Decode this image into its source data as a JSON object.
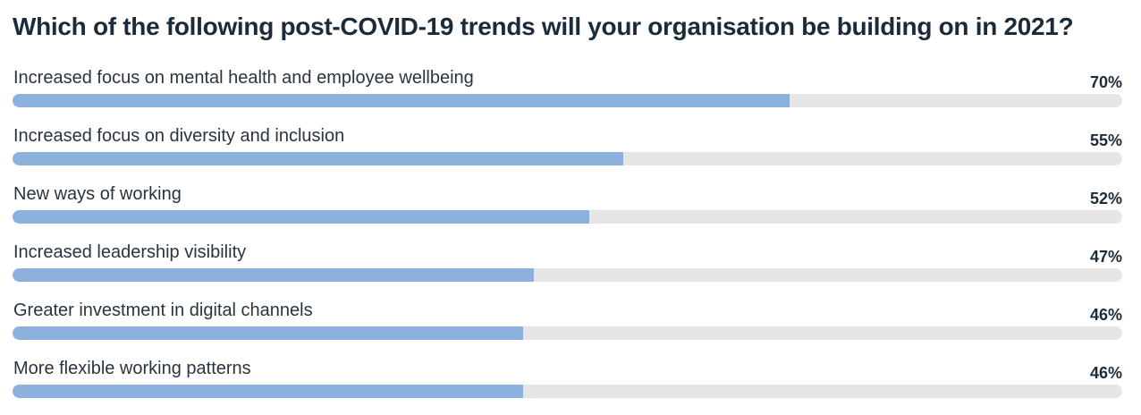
{
  "chart_data": {
    "type": "bar",
    "orientation": "horizontal",
    "title": "Which of the following post-COVID-19 trends will your organisation be building on in 2021?",
    "categories": [
      "Increased focus on mental health and employee wellbeing",
      "Increased focus on diversity and inclusion",
      "New ways of working",
      "Increased leadership visibility",
      "Greater investment in digital channels",
      "More flexible working patterns"
    ],
    "values": [
      70,
      55,
      52,
      47,
      46,
      46
    ],
    "value_labels": [
      "70%",
      "55%",
      "52%",
      "47%",
      "46%",
      "46%"
    ],
    "xlim": [
      0,
      100
    ],
    "grid": false,
    "bar_color": "#8db1dd",
    "track_color": "#e6e6e6"
  }
}
